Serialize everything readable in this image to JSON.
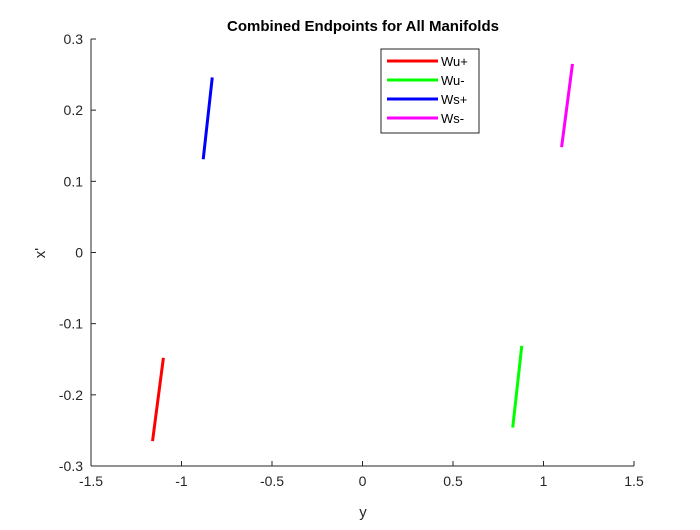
{
  "chart_data": {
    "type": "line",
    "title": "Combined Endpoints for All Manifolds",
    "xlabel": "y",
    "ylabel": "x'",
    "xlim": [
      -1.5,
      1.5
    ],
    "ylim": [
      -0.3,
      0.3
    ],
    "xticks": [
      -1.5,
      -1,
      -0.5,
      0,
      0.5,
      1,
      1.5
    ],
    "xtick_labels": [
      "-1.5",
      "-1",
      "-0.5",
      "0",
      "0.5",
      "1",
      "1.5"
    ],
    "yticks": [
      -0.3,
      -0.2,
      -0.1,
      0,
      0.1,
      0.2,
      0.3
    ],
    "ytick_labels": [
      "-0.3",
      "-0.2",
      "-0.1",
      "0",
      "0.1",
      "0.2",
      "0.3"
    ],
    "grid": false,
    "legend_position": "top-right",
    "series": [
      {
        "name": "Wu+",
        "color": "#ff0000",
        "x": [
          -1.16,
          -1.1
        ],
        "y": [
          -0.265,
          -0.148
        ]
      },
      {
        "name": "Wu-",
        "color": "#00ff00",
        "x": [
          0.83,
          0.88
        ],
        "y": [
          -0.246,
          -0.131
        ]
      },
      {
        "name": "Ws+",
        "color": "#0000ff",
        "x": [
          -0.88,
          -0.83
        ],
        "y": [
          0.131,
          0.246
        ]
      },
      {
        "name": "Ws-",
        "color": "#ff00ff",
        "x": [
          1.1,
          1.16
        ],
        "y": [
          0.148,
          0.265
        ]
      }
    ]
  }
}
